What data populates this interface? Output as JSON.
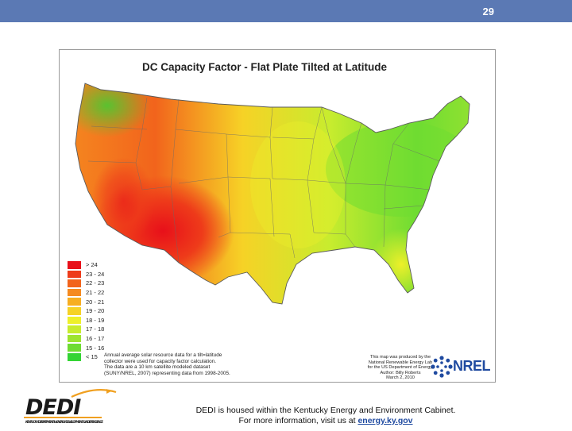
{
  "slide": {
    "number": "29"
  },
  "map": {
    "title": "DC Capacity Factor - Flat Plate Tilted at Latitude",
    "legend": [
      {
        "label": "> 24",
        "color": "#e8101a"
      },
      {
        "label": "23 - 24",
        "color": "#ee3b1a"
      },
      {
        "label": "22 - 23",
        "color": "#f2641c"
      },
      {
        "label": "21 - 22",
        "color": "#f58a20"
      },
      {
        "label": "20 - 21",
        "color": "#f7ae22"
      },
      {
        "label": "19 - 20",
        "color": "#f6d226"
      },
      {
        "label": "18 - 19",
        "color": "#eef02a"
      },
      {
        "label": "17 - 18",
        "color": "#c8ec2e"
      },
      {
        "label": "16 - 17",
        "color": "#9ee430"
      },
      {
        "label": "15 - 16",
        "color": "#6fdc32"
      },
      {
        "label": "< 15",
        "color": "#34d434"
      }
    ],
    "note_left": "Annual average solar resource data for a tilt=latitude\ncollector were used for capacity factor calculation.\nThe data are a 10 km satellite modeled dataset\n(SUNY/NREL, 2007) representing data from 1998-2005.",
    "note_right": "This map was produced by the\nNational Renewable Energy Lab\nfor the US Department of Energy.\nAuthor: Billy Roberts\nMarch 2, 2010",
    "nrel_logo_text": "NREL"
  },
  "footer": {
    "line1": "DEDI is housed within the Kentucky Energy and Environment Cabinet.",
    "line2_prefix": "For more information, visit us at ",
    "link": "energy.ky.gov"
  },
  "logo": {
    "text": "DEDI",
    "subtext": "KENTUCKY DEPARTMENT for ENERGY DEVELOPMENT & INDEPENDENCE"
  }
}
